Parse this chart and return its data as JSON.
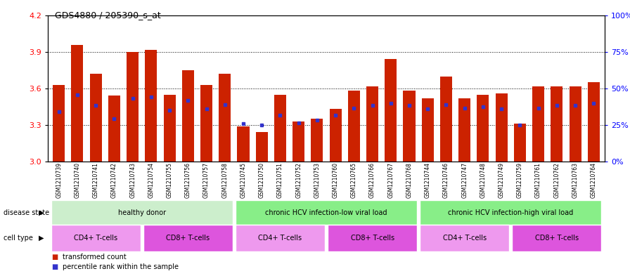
{
  "title": "GDS4880 / 205390_s_at",
  "samples": [
    "GSM1210739",
    "GSM1210740",
    "GSM1210741",
    "GSM1210742",
    "GSM1210743",
    "GSM1210754",
    "GSM1210755",
    "GSM1210756",
    "GSM1210757",
    "GSM1210758",
    "GSM1210745",
    "GSM1210750",
    "GSM1210751",
    "GSM1210752",
    "GSM1210753",
    "GSM1210760",
    "GSM1210765",
    "GSM1210766",
    "GSM1210767",
    "GSM1210768",
    "GSM1210744",
    "GSM1210746",
    "GSM1210747",
    "GSM1210748",
    "GSM1210749",
    "GSM1210759",
    "GSM1210761",
    "GSM1210762",
    "GSM1210763",
    "GSM1210764"
  ],
  "bar_values": [
    3.63,
    3.96,
    3.72,
    3.54,
    3.9,
    3.92,
    3.55,
    3.75,
    3.63,
    3.72,
    3.29,
    3.24,
    3.55,
    3.33,
    3.35,
    3.43,
    3.58,
    3.62,
    3.84,
    3.58,
    3.52,
    3.7,
    3.52,
    3.55,
    3.56,
    3.31,
    3.62,
    3.62,
    3.62,
    3.65
  ],
  "percentile_values": [
    3.41,
    3.55,
    3.46,
    3.35,
    3.52,
    3.53,
    3.42,
    3.5,
    3.43,
    3.47,
    3.31,
    3.3,
    3.38,
    3.32,
    3.34,
    3.38,
    3.44,
    3.46,
    3.48,
    3.46,
    3.43,
    3.47,
    3.44,
    3.45,
    3.43,
    3.3,
    3.44,
    3.46,
    3.46,
    3.48
  ],
  "bar_color": "#cc2200",
  "dot_color": "#3333cc",
  "ylim_left": [
    3.0,
    4.2
  ],
  "yticks_left": [
    3.0,
    3.3,
    3.6,
    3.9,
    4.2
  ],
  "yticks_right": [
    0,
    25,
    50,
    75,
    100
  ],
  "ytick_labels_right": [
    "0%",
    "25%",
    "50%",
    "75%",
    "100%"
  ],
  "bar_width": 0.65,
  "disease_groups": [
    {
      "label": "healthy donor",
      "start": 0,
      "end": 9,
      "color": "#cceecc"
    },
    {
      "label": "chronic HCV infection-low viral load",
      "start": 10,
      "end": 19,
      "color": "#88ee88"
    },
    {
      "label": "chronic HCV infection-high viral load",
      "start": 20,
      "end": 29,
      "color": "#88ee88"
    }
  ],
  "cell_groups": [
    {
      "label": "CD4+ T-cells",
      "start": 0,
      "end": 4,
      "color": "#ee99ee"
    },
    {
      "label": "CD8+ T-cells",
      "start": 5,
      "end": 9,
      "color": "#dd55dd"
    },
    {
      "label": "CD4+ T-cells",
      "start": 10,
      "end": 14,
      "color": "#ee99ee"
    },
    {
      "label": "CD8+ T-cells",
      "start": 15,
      "end": 19,
      "color": "#dd55dd"
    },
    {
      "label": "CD4+ T-cells",
      "start": 20,
      "end": 24,
      "color": "#ee99ee"
    },
    {
      "label": "CD8+ T-cells",
      "start": 25,
      "end": 29,
      "color": "#dd55dd"
    }
  ],
  "disease_state_label": "disease state",
  "cell_type_label": "cell type",
  "legend_bar_label": "transformed count",
  "legend_dot_label": "percentile rank within the sample",
  "sample_bg_color": "#cccccc",
  "grid_lines": [
    3.3,
    3.6,
    3.9
  ]
}
